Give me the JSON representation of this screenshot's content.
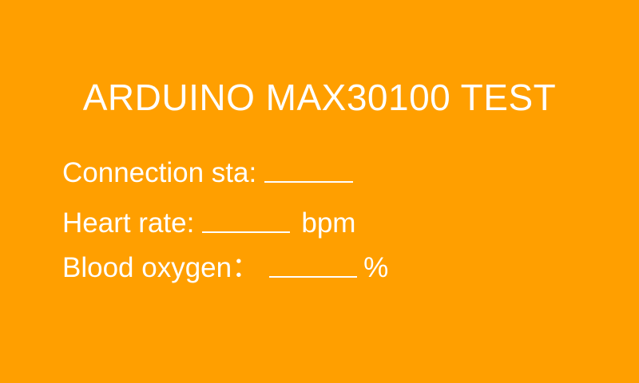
{
  "screen": {
    "title": "ARDUINO MAX30100 TEST",
    "background_color": "#ff9f00",
    "text_color": "#ffffff"
  },
  "readings": {
    "connection": {
      "label": "Connection sta:",
      "value": ""
    },
    "heart_rate": {
      "label": "Heart rate:",
      "value": "",
      "unit": "bpm"
    },
    "blood_oxygen": {
      "label": "Blood oxygen：",
      "value": "",
      "unit": "%"
    }
  }
}
